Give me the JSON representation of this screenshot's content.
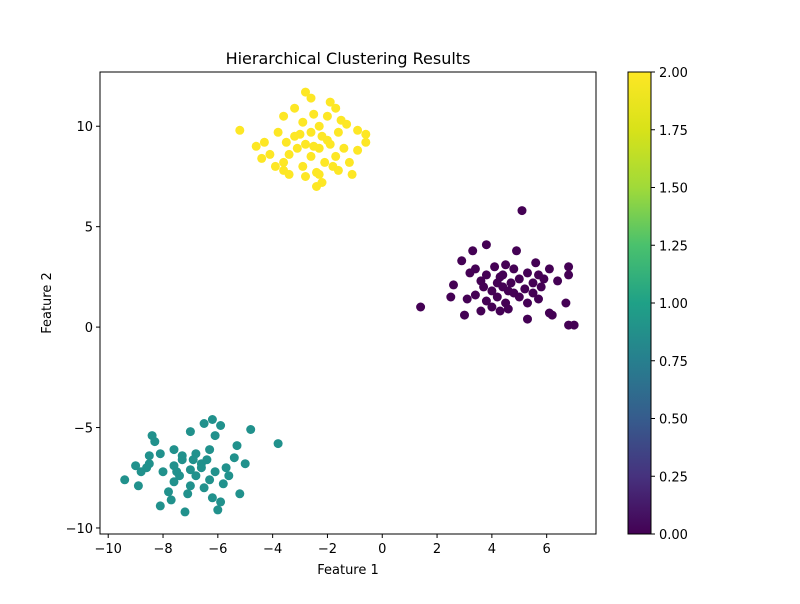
{
  "chart_data": {
    "type": "scatter",
    "title": "Hierarchical Clustering Results",
    "xlabel": "Feature 1",
    "ylabel": "Feature 2",
    "xlim": [
      -10.3,
      7.8
    ],
    "ylim": [
      -10.3,
      12.7
    ],
    "xticks": [
      -10,
      -8,
      -6,
      -4,
      -2,
      0,
      2,
      4,
      6
    ],
    "yticks": [
      -10,
      -5,
      0,
      5,
      10
    ],
    "xtick_labels": [
      "−10",
      "−8",
      "−6",
      "−4",
      "−2",
      "0",
      "2",
      "4",
      "6"
    ],
    "ytick_labels": [
      "−10",
      "−5",
      "0",
      "5",
      "10"
    ],
    "grid": false,
    "colormap": "viridis",
    "colorbar": {
      "range": [
        0,
        2
      ],
      "ticks": [
        0,
        0.25,
        0.5,
        0.75,
        1.0,
        1.25,
        1.5,
        1.75,
        2.0
      ],
      "tick_labels": [
        "0.00",
        "0.25",
        "0.50",
        "0.75",
        "1.00",
        "1.25",
        "1.50",
        "1.75",
        "2.00"
      ]
    },
    "series": [
      {
        "cluster": 0,
        "color": "#440154",
        "points": [
          [
            5.1,
            5.8
          ],
          [
            3.8,
            4.1
          ],
          [
            3.3,
            3.8
          ],
          [
            4.9,
            3.8
          ],
          [
            2.9,
            3.3
          ],
          [
            4.5,
            3.1
          ],
          [
            5.6,
            3.2
          ],
          [
            4.1,
            3.0
          ],
          [
            3.4,
            2.9
          ],
          [
            4.8,
            2.9
          ],
          [
            5.3,
            2.7
          ],
          [
            6.1,
            2.9
          ],
          [
            6.8,
            3.0
          ],
          [
            3.8,
            2.6
          ],
          [
            4.3,
            2.5
          ],
          [
            5.0,
            2.4
          ],
          [
            5.7,
            2.6
          ],
          [
            6.8,
            2.6
          ],
          [
            3.6,
            2.3
          ],
          [
            4.2,
            2.2
          ],
          [
            4.7,
            2.2
          ],
          [
            5.5,
            2.2
          ],
          [
            6.4,
            2.3
          ],
          [
            2.6,
            2.1
          ],
          [
            3.7,
            2.0
          ],
          [
            4.4,
            2.0
          ],
          [
            5.2,
            1.9
          ],
          [
            5.8,
            2.0
          ],
          [
            4.0,
            1.8
          ],
          [
            4.8,
            1.7
          ],
          [
            5.5,
            1.7
          ],
          [
            3.4,
            1.6
          ],
          [
            4.2,
            1.5
          ],
          [
            5.0,
            1.5
          ],
          [
            5.7,
            1.4
          ],
          [
            2.5,
            1.5
          ],
          [
            3.1,
            1.4
          ],
          [
            3.8,
            1.3
          ],
          [
            4.5,
            1.2
          ],
          [
            5.3,
            1.2
          ],
          [
            6.7,
            1.2
          ],
          [
            4.0,
            1.0
          ],
          [
            4.6,
            0.9
          ],
          [
            1.4,
            1.0
          ],
          [
            3.0,
            0.6
          ],
          [
            3.6,
            0.8
          ],
          [
            4.3,
            0.8
          ],
          [
            6.1,
            0.7
          ],
          [
            6.2,
            0.6
          ],
          [
            5.3,
            0.4
          ],
          [
            6.8,
            0.1
          ],
          [
            7.0,
            0.1
          ],
          [
            4.4,
            2.6
          ],
          [
            5.9,
            2.4
          ],
          [
            3.2,
            2.7
          ],
          [
            4.6,
            1.8
          ]
        ]
      },
      {
        "cluster": 1,
        "color": "#21918c",
        "points": [
          [
            -3.8,
            -5.8
          ],
          [
            -4.8,
            -5.1
          ],
          [
            -6.2,
            -4.6
          ],
          [
            -6.5,
            -4.8
          ],
          [
            -5.9,
            -4.9
          ],
          [
            -7.0,
            -5.2
          ],
          [
            -8.4,
            -5.4
          ],
          [
            -8.3,
            -5.7
          ],
          [
            -6.1,
            -5.4
          ],
          [
            -5.3,
            -5.9
          ],
          [
            -7.6,
            -6.1
          ],
          [
            -8.1,
            -6.3
          ],
          [
            -8.5,
            -6.4
          ],
          [
            -6.8,
            -6.3
          ],
          [
            -6.3,
            -6.1
          ],
          [
            -5.4,
            -6.5
          ],
          [
            -7.3,
            -6.6
          ],
          [
            -8.5,
            -6.8
          ],
          [
            -9.0,
            -6.9
          ],
          [
            -8.6,
            -7.0
          ],
          [
            -7.6,
            -6.9
          ],
          [
            -7.0,
            -7.1
          ],
          [
            -6.6,
            -6.8
          ],
          [
            -6.1,
            -7.2
          ],
          [
            -5.7,
            -7.0
          ],
          [
            -5.0,
            -6.8
          ],
          [
            -8.8,
            -7.2
          ],
          [
            -8.0,
            -7.2
          ],
          [
            -7.4,
            -7.4
          ],
          [
            -6.8,
            -7.4
          ],
          [
            -6.3,
            -7.6
          ],
          [
            -5.6,
            -7.4
          ],
          [
            -9.4,
            -7.6
          ],
          [
            -7.6,
            -7.7
          ],
          [
            -7.0,
            -7.9
          ],
          [
            -6.5,
            -8.0
          ],
          [
            -5.8,
            -7.8
          ],
          [
            -8.9,
            -7.9
          ],
          [
            -7.8,
            -8.2
          ],
          [
            -7.1,
            -8.3
          ],
          [
            -6.2,
            -8.5
          ],
          [
            -5.2,
            -8.3
          ],
          [
            -7.7,
            -8.6
          ],
          [
            -5.9,
            -8.7
          ],
          [
            -8.1,
            -8.9
          ],
          [
            -6.0,
            -9.1
          ],
          [
            -7.2,
            -9.2
          ],
          [
            -6.6,
            -7.0
          ],
          [
            -7.3,
            -6.4
          ],
          [
            -6.9,
            -6.6
          ],
          [
            -6.4,
            -6.6
          ],
          [
            -7.5,
            -7.2
          ]
        ]
      },
      {
        "cluster": 2,
        "color": "#fde725",
        "points": [
          [
            -2.8,
            11.7
          ],
          [
            -2.6,
            11.4
          ],
          [
            -1.9,
            11.2
          ],
          [
            -3.2,
            10.9
          ],
          [
            -1.7,
            10.9
          ],
          [
            -2.5,
            10.6
          ],
          [
            -3.6,
            10.5
          ],
          [
            -2.0,
            10.5
          ],
          [
            -1.5,
            10.3
          ],
          [
            -2.9,
            10.2
          ],
          [
            -2.3,
            10.0
          ],
          [
            -1.3,
            10.1
          ],
          [
            -5.2,
            9.8
          ],
          [
            -3.8,
            9.7
          ],
          [
            -2.6,
            9.7
          ],
          [
            -1.6,
            9.7
          ],
          [
            -0.9,
            9.8
          ],
          [
            -0.6,
            9.6
          ],
          [
            -3.2,
            9.5
          ],
          [
            -2.2,
            9.5
          ],
          [
            -0.6,
            9.2
          ],
          [
            -4.3,
            9.2
          ],
          [
            -3.5,
            9.2
          ],
          [
            -2.8,
            9.1
          ],
          [
            -1.9,
            9.1
          ],
          [
            -4.6,
            9.0
          ],
          [
            -3.1,
            8.9
          ],
          [
            -2.3,
            8.9
          ],
          [
            -1.4,
            8.9
          ],
          [
            -0.9,
            8.8
          ],
          [
            -4.1,
            8.6
          ],
          [
            -3.4,
            8.6
          ],
          [
            -2.6,
            8.5
          ],
          [
            -1.7,
            8.5
          ],
          [
            -4.4,
            8.4
          ],
          [
            -3.6,
            8.2
          ],
          [
            -2.1,
            8.2
          ],
          [
            -1.2,
            8.2
          ],
          [
            -3.9,
            8.0
          ],
          [
            -2.9,
            8.0
          ],
          [
            -1.8,
            8.0
          ],
          [
            -3.6,
            7.8
          ],
          [
            -2.4,
            7.7
          ],
          [
            -1.6,
            7.8
          ],
          [
            -3.4,
            7.6
          ],
          [
            -2.8,
            7.5
          ],
          [
            -2.3,
            7.6
          ],
          [
            -1.1,
            7.6
          ],
          [
            -2.2,
            7.2
          ],
          [
            -2.4,
            7.0
          ],
          [
            -2.0,
            9.3
          ],
          [
            -2.5,
            9.0
          ],
          [
            -3.0,
            9.6
          ]
        ]
      }
    ]
  }
}
